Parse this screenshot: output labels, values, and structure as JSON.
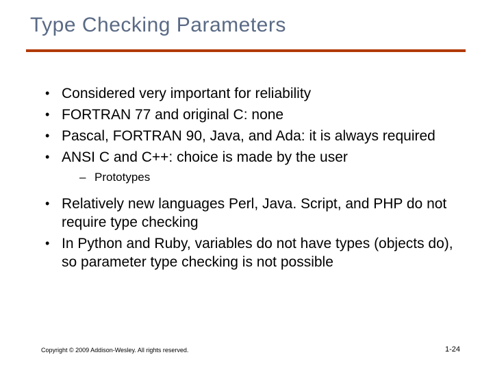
{
  "slide": {
    "title": "Type Checking Parameters",
    "title_color": "#5a6a85",
    "rule_color": "#b23a06",
    "bullets": [
      {
        "text": "Considered very important for reliability"
      },
      {
        "text": "FORTRAN 77 and original C: none"
      },
      {
        "text": "Pascal, FORTRAN 90, Java, and Ada: it is always required"
      },
      {
        "text": "ANSI C and C++: choice is made by the user",
        "sub": [
          {
            "text": "Prototypes"
          }
        ]
      },
      {
        "text": "Relatively new languages Perl, Java. Script, and PHP do not require type checking",
        "gap_before": true
      },
      {
        "text": "In Python and Ruby, variables do not have types (objects do), so parameter type checking is not possible"
      }
    ],
    "footer": {
      "copyright": "Copyright © 2009 Addison-Wesley. All rights reserved.",
      "page": "1-24"
    },
    "background_color": "#ffffff",
    "text_color": "#000000",
    "title_fontsize": 30,
    "body_fontsize": 21,
    "sub_fontsize": 17,
    "footer_fontsize": 9
  }
}
